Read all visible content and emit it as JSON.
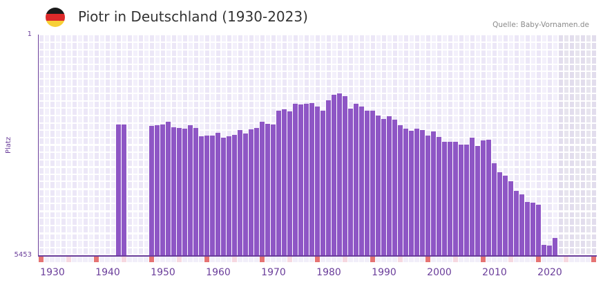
{
  "header": {
    "flag_icon": "germany-flag-icon",
    "flag_colors": [
      "#1a1a1a",
      "#dd2a2a",
      "#f7d038"
    ],
    "title": "Piotr in Deutschland (1930-2023)",
    "source": "Quelle: Baby-Vornamen.de"
  },
  "axis": {
    "y_top_label": "1",
    "y_bottom_label": "5453",
    "y_title": "Platz",
    "x_ticks": [
      "1930",
      "1940",
      "1950",
      "1960",
      "1970",
      "1980",
      "1990",
      "2000",
      "2010",
      "2020"
    ]
  },
  "colors": {
    "bar": "#8e56c5",
    "axis": "#6a3d9a",
    "grid_a": "#f3f0fb",
    "grid_b": "#ece7f7",
    "shaded_a": "#e7e4ee",
    "shaded_b": "#e2dded",
    "marker_strong": "#e57373",
    "marker_light": "#f6d8e0",
    "marker_faint": "#f1eef9"
  },
  "chart_data": {
    "type": "bar",
    "title": "Piotr in Deutschland (1930-2023)",
    "xlabel": "",
    "ylabel": "Platz",
    "y_inverted": true,
    "ylim": [
      5453,
      1
    ],
    "x_range": [
      1928,
      2028
    ],
    "shaded_from_year": 2022,
    "grid": true,
    "legend": null,
    "categories": [
      1942,
      1943,
      1948,
      1949,
      1950,
      1951,
      1952,
      1953,
      1954,
      1955,
      1956,
      1957,
      1958,
      1959,
      1960,
      1961,
      1962,
      1963,
      1964,
      1965,
      1966,
      1967,
      1968,
      1969,
      1970,
      1971,
      1972,
      1973,
      1974,
      1975,
      1976,
      1977,
      1978,
      1979,
      1980,
      1981,
      1982,
      1983,
      1984,
      1985,
      1986,
      1987,
      1988,
      1989,
      1990,
      1991,
      1992,
      1993,
      1994,
      1995,
      1996,
      1997,
      1998,
      1999,
      2000,
      2001,
      2002,
      2003,
      2004,
      2005,
      2006,
      2007,
      2008,
      2009,
      2010,
      2011,
      2012,
      2013,
      2014,
      2015,
      2016,
      2017,
      2018,
      2019,
      2020,
      2021
    ],
    "values": [
      2222,
      2222,
      2256,
      2239,
      2222,
      2154,
      2290,
      2307,
      2324,
      2239,
      2307,
      2512,
      2495,
      2495,
      2427,
      2546,
      2512,
      2478,
      2358,
      2444,
      2341,
      2307,
      2154,
      2205,
      2222,
      1880,
      1846,
      1897,
      1709,
      1726,
      1709,
      1692,
      1777,
      1880,
      1624,
      1487,
      1453,
      1521,
      1829,
      1709,
      1777,
      1880,
      1880,
      2000,
      2085,
      2017,
      2102,
      2239,
      2324,
      2376,
      2324,
      2358,
      2495,
      2393,
      2529,
      2649,
      2649,
      2649,
      2717,
      2717,
      2546,
      2751,
      2615,
      2597,
      3178,
      3400,
      3486,
      3623,
      3862,
      3947,
      4135,
      4152,
      4204,
      5195,
      5212,
      5024
    ]
  }
}
